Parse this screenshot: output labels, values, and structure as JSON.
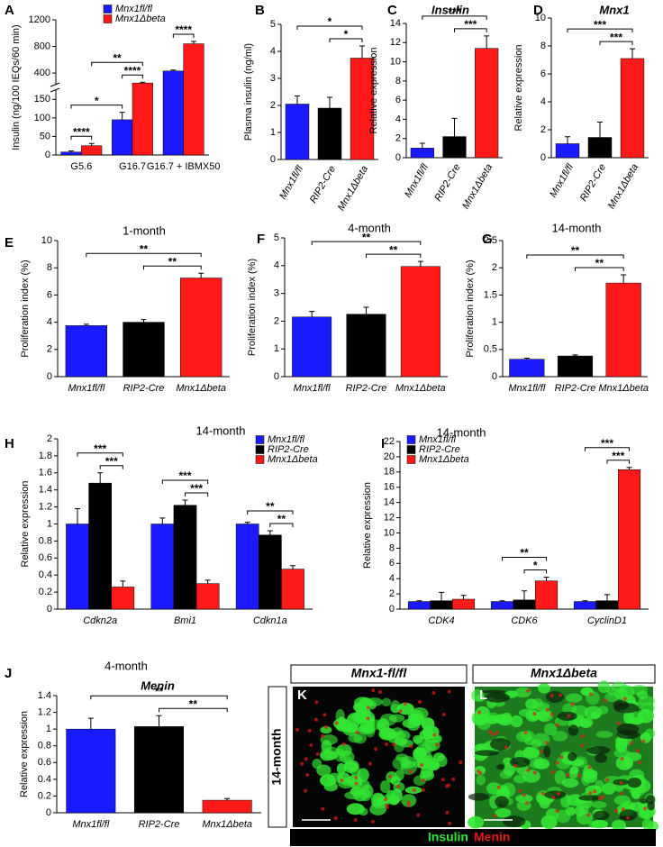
{
  "chart_data": [
    {
      "type": "bar",
      "panel": "A",
      "ylabel": "Insulin (ng/100 IEQs/60 min)",
      "categories": [
        "G5.6",
        "G16.7",
        "G16.7 + IBMX50"
      ],
      "category_style": "normal",
      "series": [
        {
          "name": "Mnx1fl/fl",
          "color": "#1a1aff",
          "values": [
            8,
            95,
            430
          ],
          "errors": [
            3,
            20,
            15
          ]
        },
        {
          "name": "Mnx1Δbeta",
          "color": "#ff1a1a",
          "values": [
            25,
            250,
            840
          ],
          "errors": [
            6,
            12,
            35
          ]
        }
      ],
      "ylim": [
        0,
        1200
      ],
      "axis_break": [
        175,
        225
      ],
      "yticks": [
        0,
        50,
        100,
        150,
        400,
        800,
        1200
      ],
      "annotations": [
        {
          "text": "****",
          "from": [
            0,
            0
          ],
          "to": [
            0,
            1
          ]
        },
        {
          "text": "*",
          "from": [
            0,
            0
          ],
          "to": [
            1,
            0
          ]
        },
        {
          "text": "****",
          "from": [
            1,
            0
          ],
          "to": [
            1,
            1
          ]
        },
        {
          "text": "**",
          "from": [
            0,
            1
          ],
          "to": [
            1,
            1
          ]
        },
        {
          "text": "****",
          "from": [
            2,
            0
          ],
          "to": [
            2,
            1
          ]
        }
      ],
      "legend": "top"
    },
    {
      "type": "bar",
      "panel": "B",
      "ylabel": "Plasma insulin (ng/ml)",
      "categories": [
        "Mnx1fl/fl",
        "RIP2-Cre",
        "Mnx1Δbeta"
      ],
      "category_style": "italic",
      "series": [
        {
          "colors": [
            "#1a1aff",
            "#000000",
            "#ff1a1a"
          ],
          "values": [
            2.05,
            1.9,
            3.75
          ],
          "errors": [
            0.3,
            0.4,
            0.45
          ]
        }
      ],
      "ylim": [
        0,
        5
      ],
      "yticks": [
        0,
        1,
        2,
        3,
        4,
        5
      ],
      "annotations": [
        {
          "text": "*",
          "from": [
            1,
            0
          ],
          "to": [
            2,
            0
          ]
        },
        {
          "text": "*",
          "from": [
            0,
            0
          ],
          "to": [
            2,
            0
          ]
        }
      ]
    },
    {
      "type": "bar",
      "panel": "C",
      "title": "Insulin",
      "title_style": "bold-italic",
      "ylabel": "Relative expression",
      "categories": [
        "Mnx1fl/fl",
        "RIP2-Cre",
        "Mnx1Δbeta"
      ],
      "category_style": "italic",
      "series": [
        {
          "colors": [
            "#1a1aff",
            "#000000",
            "#ff1a1a"
          ],
          "values": [
            1,
            2.2,
            11.4
          ],
          "errors": [
            0.5,
            1.9,
            1.3
          ]
        }
      ],
      "ylim": [
        0,
        14
      ],
      "yticks": [
        0,
        2,
        4,
        6,
        8,
        10,
        12,
        14
      ],
      "annotations": [
        {
          "text": "***",
          "from": [
            1,
            0
          ],
          "to": [
            2,
            0
          ]
        },
        {
          "text": "***",
          "from": [
            0,
            0
          ],
          "to": [
            2,
            0
          ]
        }
      ]
    },
    {
      "type": "bar",
      "panel": "D",
      "title": "Mnx1",
      "title_style": "bold-italic",
      "ylabel": "Relative expression",
      "categories": [
        "Mnx1fl/fl",
        "RIP2-Cre",
        "Mnx1Δbeta"
      ],
      "category_style": "italic",
      "series": [
        {
          "colors": [
            "#1a1aff",
            "#000000",
            "#ff1a1a"
          ],
          "values": [
            1,
            1.45,
            7.1
          ],
          "errors": [
            0.5,
            1.1,
            0.7
          ]
        }
      ],
      "ylim": [
        0,
        10
      ],
      "yticks": [
        0,
        2,
        4,
        6,
        8,
        10
      ],
      "annotations": [
        {
          "text": "***",
          "from": [
            1,
            0
          ],
          "to": [
            2,
            0
          ]
        },
        {
          "text": "***",
          "from": [
            0,
            0
          ],
          "to": [
            2,
            0
          ]
        }
      ]
    },
    {
      "type": "bar",
      "panel": "E",
      "title": "1-month",
      "title_style": "normal",
      "ylabel": "Proliferation index (%)",
      "categories": [
        "Mnx1fl/fl",
        "RIP2-Cre",
        "Mnx1Δbeta"
      ],
      "category_style": "italic",
      "series": [
        {
          "colors": [
            "#1a1aff",
            "#000000",
            "#ff1a1a"
          ],
          "values": [
            3.75,
            4.0,
            7.25
          ],
          "errors": [
            0.1,
            0.2,
            0.35
          ]
        }
      ],
      "ylim": [
        0,
        10
      ],
      "yticks": [
        0,
        2,
        4,
        6,
        8,
        10
      ],
      "annotations": [
        {
          "text": "**",
          "from": [
            1,
            0
          ],
          "to": [
            2,
            0
          ]
        },
        {
          "text": "**",
          "from": [
            0,
            0
          ],
          "to": [
            2,
            0
          ]
        }
      ]
    },
    {
      "type": "bar",
      "panel": "F",
      "title": "4-month",
      "title_style": "normal",
      "ylabel": "Proliferation index (%)",
      "categories": [
        "Mnx1fl/fl",
        "RIP2-Cre",
        "Mnx1Δbeta"
      ],
      "category_style": "italic",
      "series": [
        {
          "colors": [
            "#1a1aff",
            "#000000",
            "#ff1a1a"
          ],
          "values": [
            2.15,
            2.25,
            3.97
          ],
          "errors": [
            0.2,
            0.25,
            0.18
          ]
        }
      ],
      "ylim": [
        0,
        5
      ],
      "yticks": [
        0,
        1,
        2,
        3,
        4,
        5
      ],
      "annotations": [
        {
          "text": "**",
          "from": [
            1,
            0
          ],
          "to": [
            2,
            0
          ]
        },
        {
          "text": "**",
          "from": [
            0,
            0
          ],
          "to": [
            2,
            0
          ]
        }
      ]
    },
    {
      "type": "bar",
      "panel": "G",
      "title": "14-month",
      "title_style": "normal",
      "ylabel": "Proliferation index (%)",
      "categories": [
        "Mnx1fl/fl",
        "RIP2-Cre",
        "Mnx1Δbeta"
      ],
      "category_style": "italic",
      "series": [
        {
          "colors": [
            "#1a1aff",
            "#000000",
            "#ff1a1a"
          ],
          "values": [
            0.32,
            0.38,
            1.72
          ],
          "errors": [
            0.02,
            0.02,
            0.15
          ]
        }
      ],
      "ylim": [
        0,
        2.5
      ],
      "yticks": [
        0,
        0.5,
        1,
        1.5,
        2,
        2.5
      ],
      "annotations": [
        {
          "text": "**",
          "from": [
            1,
            0
          ],
          "to": [
            2,
            0
          ]
        },
        {
          "text": "**",
          "from": [
            0,
            0
          ],
          "to": [
            2,
            0
          ]
        }
      ]
    },
    {
      "type": "bar",
      "panel": "H",
      "title": "14-month",
      "title_style": "normal",
      "ylabel": "Relative expression",
      "categories": [
        "Cdkn2a",
        "Bmi1",
        "Cdkn1a"
      ],
      "category_style": "italic",
      "series": [
        {
          "name": "Mnx1fl/fl",
          "color": "#1a1aff",
          "values": [
            1.0,
            1.0,
            1.0
          ],
          "errors": [
            0.18,
            0.07,
            0.02
          ]
        },
        {
          "name": "RIP2-Cre",
          "color": "#000000",
          "values": [
            1.48,
            1.22,
            0.87
          ],
          "errors": [
            0.12,
            0.06,
            0.05
          ]
        },
        {
          "name": "Mnx1Δbeta",
          "color": "#ff1a1a",
          "values": [
            0.26,
            0.3,
            0.47
          ],
          "errors": [
            0.07,
            0.04,
            0.04
          ]
        }
      ],
      "ylim": [
        0,
        2
      ],
      "yticks": [
        0,
        0.2,
        0.4,
        0.6,
        0.8,
        1,
        1.2,
        1.4,
        1.6,
        1.8,
        2
      ],
      "annotations": [
        {
          "text": "***",
          "from": [
            0,
            1
          ],
          "to": [
            0,
            2
          ]
        },
        {
          "text": "***",
          "from": [
            0,
            0
          ],
          "to": [
            0,
            2
          ]
        },
        {
          "text": "***",
          "from": [
            1,
            1
          ],
          "to": [
            1,
            2
          ]
        },
        {
          "text": "***",
          "from": [
            1,
            0
          ],
          "to": [
            1,
            2
          ]
        },
        {
          "text": "**",
          "from": [
            2,
            1
          ],
          "to": [
            2,
            2
          ]
        },
        {
          "text": "**",
          "from": [
            2,
            0
          ],
          "to": [
            2,
            2
          ]
        }
      ],
      "legend": "top-right"
    },
    {
      "type": "bar",
      "panel": "I",
      "title": "14-month",
      "title_style": "normal",
      "ylabel": "Relative expression",
      "categories": [
        "CDK4",
        "CDK6",
        "CyclinD1"
      ],
      "category_style": "italic",
      "series": [
        {
          "name": "Mnx1fl/fl",
          "color": "#1a1aff",
          "values": [
            1,
            1,
            1
          ],
          "errors": [
            0.1,
            0.1,
            0.1
          ]
        },
        {
          "name": "RIP2-Cre",
          "color": "#000000",
          "values": [
            1.1,
            1.2,
            1.1
          ],
          "errors": [
            1.1,
            1.2,
            0.8
          ]
        },
        {
          "name": "Mnx1Δbeta",
          "color": "#ff1a1a",
          "values": [
            1.3,
            3.7,
            18.3
          ],
          "errors": [
            0.5,
            0.5,
            0.3
          ]
        }
      ],
      "ylim": [
        0,
        22
      ],
      "yticks": [
        0,
        2,
        4,
        6,
        8,
        10,
        12,
        14,
        16,
        18,
        20,
        22
      ],
      "annotations": [
        {
          "text": "*",
          "from": [
            1,
            1
          ],
          "to": [
            1,
            2
          ]
        },
        {
          "text": "**",
          "from": [
            1,
            0
          ],
          "to": [
            1,
            2
          ]
        },
        {
          "text": "***",
          "from": [
            2,
            1
          ],
          "to": [
            2,
            2
          ]
        },
        {
          "text": "***",
          "from": [
            2,
            0
          ],
          "to": [
            2,
            2
          ]
        }
      ],
      "legend": "top-left"
    },
    {
      "type": "bar",
      "panel": "J",
      "title": "4-month",
      "title_style": "normal",
      "subtitle": "Menin",
      "ylabel": "Relative expression",
      "categories": [
        "Mnx1fl/fl",
        "RIP2-Cre",
        "Mnx1Δbeta"
      ],
      "category_style": "italic",
      "series": [
        {
          "colors": [
            "#1a1aff",
            "#000000",
            "#ff1a1a"
          ],
          "values": [
            1.0,
            1.03,
            0.15
          ],
          "errors": [
            0.13,
            0.13,
            0.02
          ]
        }
      ],
      "ylim": [
        0,
        1.4
      ],
      "yticks": [
        0,
        0.2,
        0.4,
        0.6,
        0.8,
        1,
        1.2,
        1.4
      ],
      "annotations": [
        {
          "text": "**",
          "from": [
            1,
            0
          ],
          "to": [
            2,
            0
          ]
        },
        {
          "text": "**",
          "from": [
            0,
            0
          ],
          "to": [
            2,
            0
          ]
        }
      ]
    }
  ],
  "images": {
    "row_label": "14-month",
    "panels": [
      {
        "panel": "K",
        "header": "Mnx1-fl/fl"
      },
      {
        "panel": "L",
        "header": "Mnx1Δbeta"
      }
    ],
    "stains": [
      {
        "name": "Insulin",
        "color": "#33e633"
      },
      {
        "name": "Menin",
        "color": "#e61a1a"
      }
    ]
  }
}
